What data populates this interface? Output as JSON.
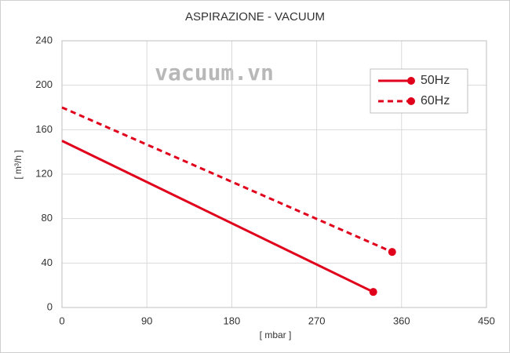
{
  "chart_data": {
    "type": "line",
    "title": "ASPIRAZIONE - VACUUM",
    "annotation": "vacuum.vn",
    "x_label": "[ mbar ]",
    "y_label": "[ m³/h ]",
    "xlim": [
      0,
      450
    ],
    "xticks": [
      0,
      90,
      180,
      270,
      360,
      450
    ],
    "ylim": [
      0,
      240
    ],
    "yticks": [
      0,
      40,
      80,
      120,
      160,
      200,
      240
    ],
    "grid": true,
    "legend": "upper right",
    "series": [
      {
        "name": "50Hz",
        "color": "#e0001b",
        "linestyle": "solid",
        "x": [
          0,
          330
        ],
        "values": [
          150,
          14
        ]
      },
      {
        "name": "60Hz",
        "color": "#e0001b",
        "linestyle": "dashed",
        "x": [
          0,
          350
        ],
        "values": [
          180,
          50
        ]
      }
    ]
  }
}
